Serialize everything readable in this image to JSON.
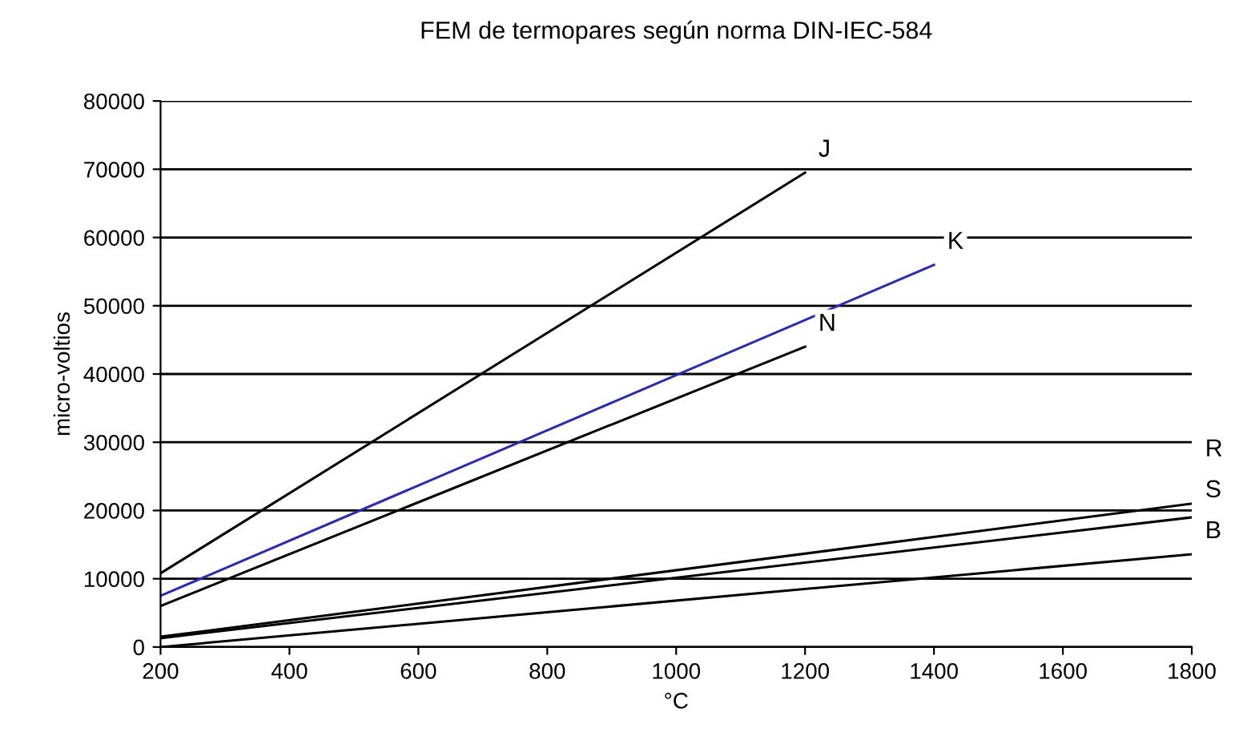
{
  "chart_data": {
    "type": "line",
    "title": "FEM de termopares según norma DIN-IEC-584",
    "xlabel": "°C",
    "ylabel": "micro-voltios",
    "xlim": [
      200,
      1800
    ],
    "xticks": [
      200,
      400,
      600,
      800,
      1000,
      1200,
      1400,
      1600,
      1800
    ],
    "ylim": [
      0,
      80000
    ],
    "yticks": [
      0,
      10000,
      20000,
      30000,
      40000,
      50000,
      60000,
      70000,
      80000
    ],
    "grid": "y",
    "legend": false,
    "marker": "none",
    "line_style": "solid",
    "series": [
      {
        "name": "J",
        "color": "#000000",
        "x": [
          200,
          1200
        ],
        "values": [
          10800,
          69500
        ]
      },
      {
        "name": "K",
        "color": "#2b2bb0",
        "x": [
          200,
          1400
        ],
        "values": [
          7500,
          56000
        ]
      },
      {
        "name": "N",
        "color": "#000000",
        "x": [
          200,
          1200
        ],
        "values": [
          6000,
          44000
        ]
      },
      {
        "name": "R",
        "color": "#000000",
        "x": [
          200,
          1800
        ],
        "values": [
          1500,
          21000
        ]
      },
      {
        "name": "S",
        "color": "#000000",
        "x": [
          200,
          1800
        ],
        "values": [
          1300,
          19000
        ]
      },
      {
        "name": "B",
        "color": "#000000",
        "x": [
          200,
          1800
        ],
        "values": [
          0,
          13600
        ]
      }
    ]
  }
}
